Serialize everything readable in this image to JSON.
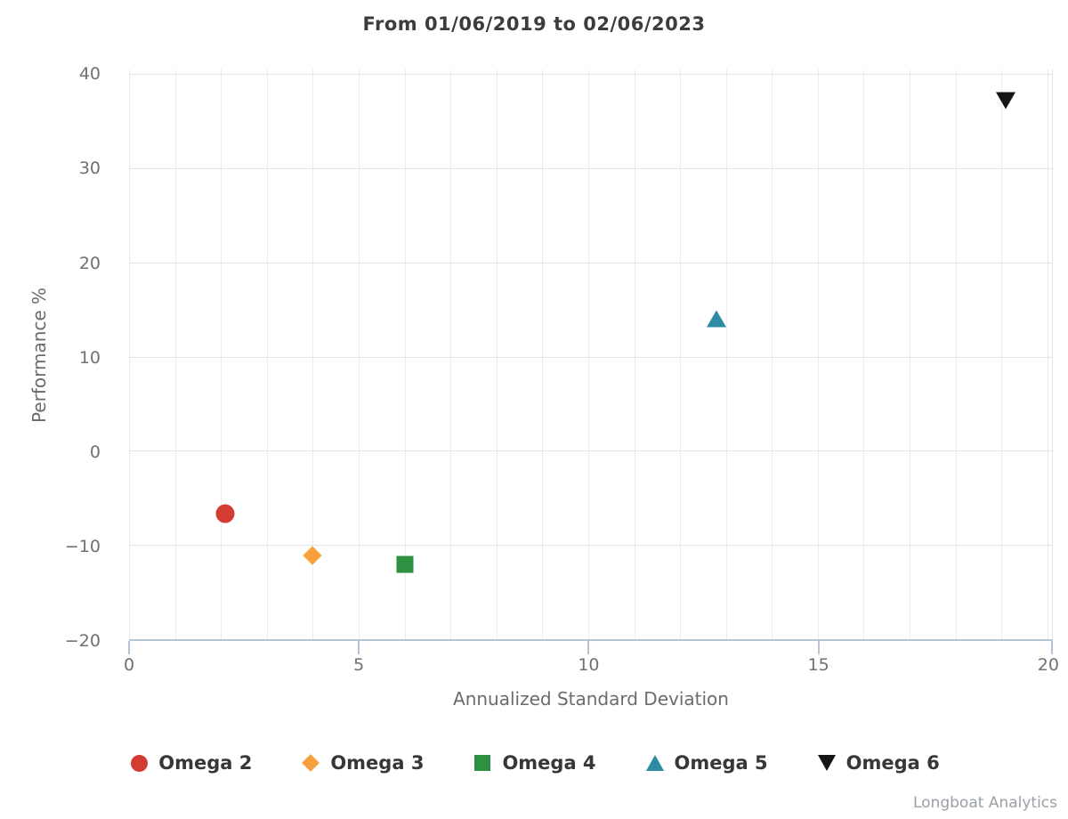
{
  "chart": {
    "title": "From 01/06/2019 to 02/06/2023",
    "footer": "Longboat Analytics",
    "x_axis": {
      "title": "Annualized Standard Deviation",
      "ticks": [
        0,
        5,
        10,
        15,
        20
      ]
    },
    "y_axis": {
      "title": "Performance %",
      "ticks": [
        40,
        30,
        20,
        10,
        0,
        -10,
        -20
      ]
    }
  },
  "chart_data": {
    "type": "scatter",
    "title": "From 01/06/2019 to 02/06/2023",
    "xlabel": "Annualized Standard Deviation",
    "ylabel": "Performance %",
    "xlim": [
      0,
      20.1
    ],
    "ylim": [
      -20,
      40.5
    ],
    "x_gridline_step": 1,
    "y_gridline_step": 10,
    "grid": true,
    "legend_position": "bottom",
    "series": [
      {
        "name": "Omega 2",
        "marker": "circle",
        "color": "#d33b33",
        "points": [
          {
            "x": 2.1,
            "y": -6.7
          }
        ]
      },
      {
        "name": "Omega 3",
        "marker": "diamond",
        "color": "#f6a13d",
        "points": [
          {
            "x": 4.0,
            "y": -11.1
          }
        ]
      },
      {
        "name": "Omega 4",
        "marker": "square",
        "color": "#2e9142",
        "points": [
          {
            "x": 6.0,
            "y": -12.1
          }
        ]
      },
      {
        "name": "Omega 5",
        "marker": "triangle-up",
        "color": "#2d8ba3",
        "points": [
          {
            "x": 12.8,
            "y": 14.0
          }
        ]
      },
      {
        "name": "Omega 6",
        "marker": "triangle-down",
        "color": "#151515",
        "points": [
          {
            "x": 19.1,
            "y": 37.2
          }
        ]
      }
    ],
    "colors": {
      "grid_vertical": "#ececec",
      "grid_horizontal": "#e4e4e4",
      "axis_line": "#b6c3d2",
      "tick_label": "#707070",
      "axis_title": "#6b6b6b",
      "title": "#3c3c3c",
      "legend_label": "#373737",
      "footer": "#9aa0a6"
    }
  }
}
